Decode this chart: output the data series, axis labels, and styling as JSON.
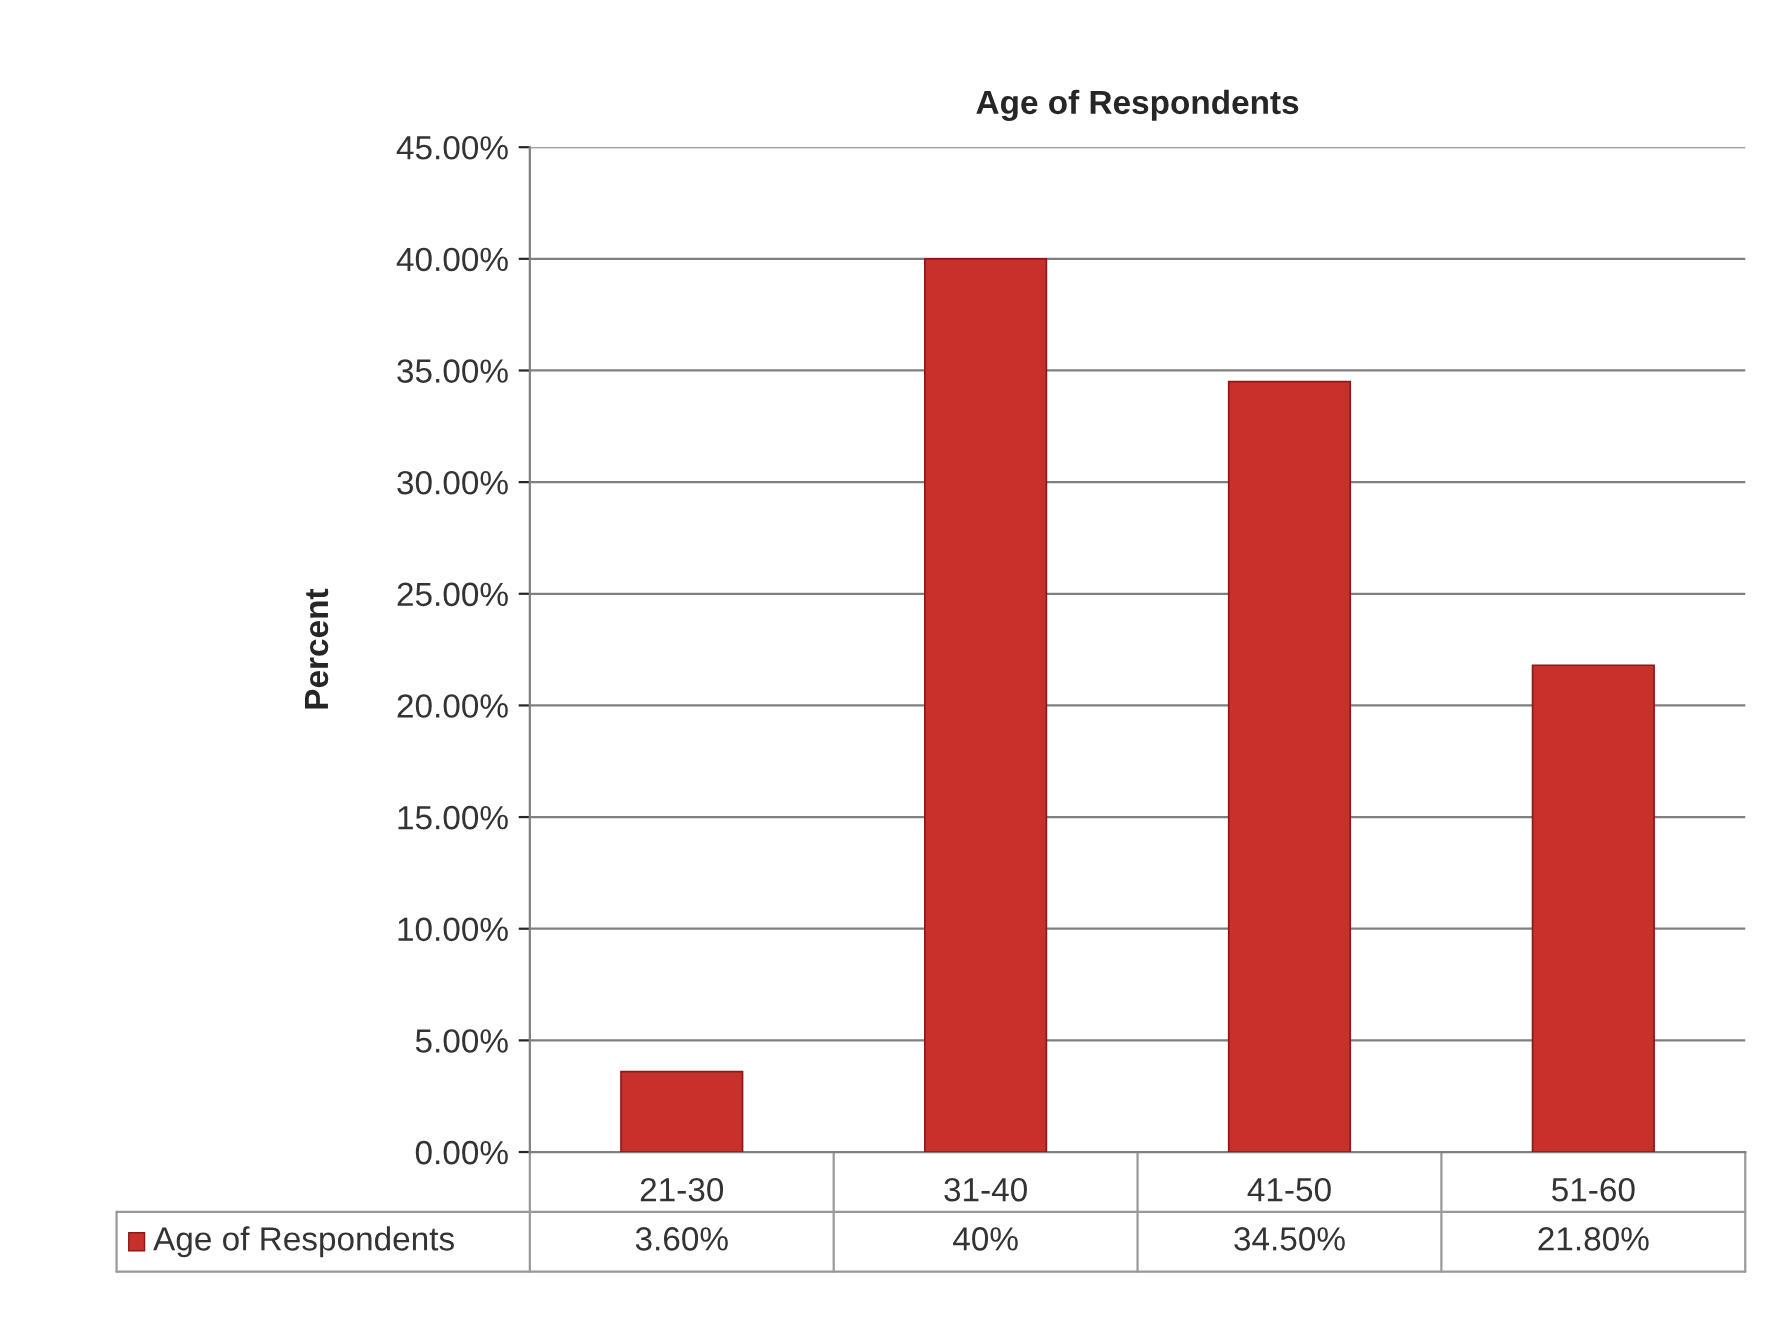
{
  "chart_data": {
    "type": "bar",
    "title": "Age of Respondents",
    "ylabel": "Percent",
    "categories": [
      "21-30",
      "31-40",
      "41-50",
      "51-60"
    ],
    "series": [
      {
        "name": "Age of Respondents",
        "color": "#c8302c",
        "values": [
          3.6,
          40,
          34.5,
          21.8
        ],
        "value_labels": [
          "3.60%",
          "40%",
          "34.50%",
          "21.80%"
        ]
      }
    ],
    "ylim": [
      0,
      45
    ],
    "yticks": [
      {
        "value": 0,
        "label": "0.00%"
      },
      {
        "value": 5,
        "label": "5.00%"
      },
      {
        "value": 10,
        "label": "10.00%"
      },
      {
        "value": 15,
        "label": "15.00%"
      },
      {
        "value": 20,
        "label": "20.00%"
      },
      {
        "value": 25,
        "label": "25.00%"
      },
      {
        "value": 30,
        "label": "30.00%"
      },
      {
        "value": 35,
        "label": "35.00%"
      },
      {
        "value": 40,
        "label": "40.00%"
      },
      {
        "value": 45,
        "label": "45.00%"
      }
    ],
    "grid": "y",
    "legend": "bottom left"
  }
}
